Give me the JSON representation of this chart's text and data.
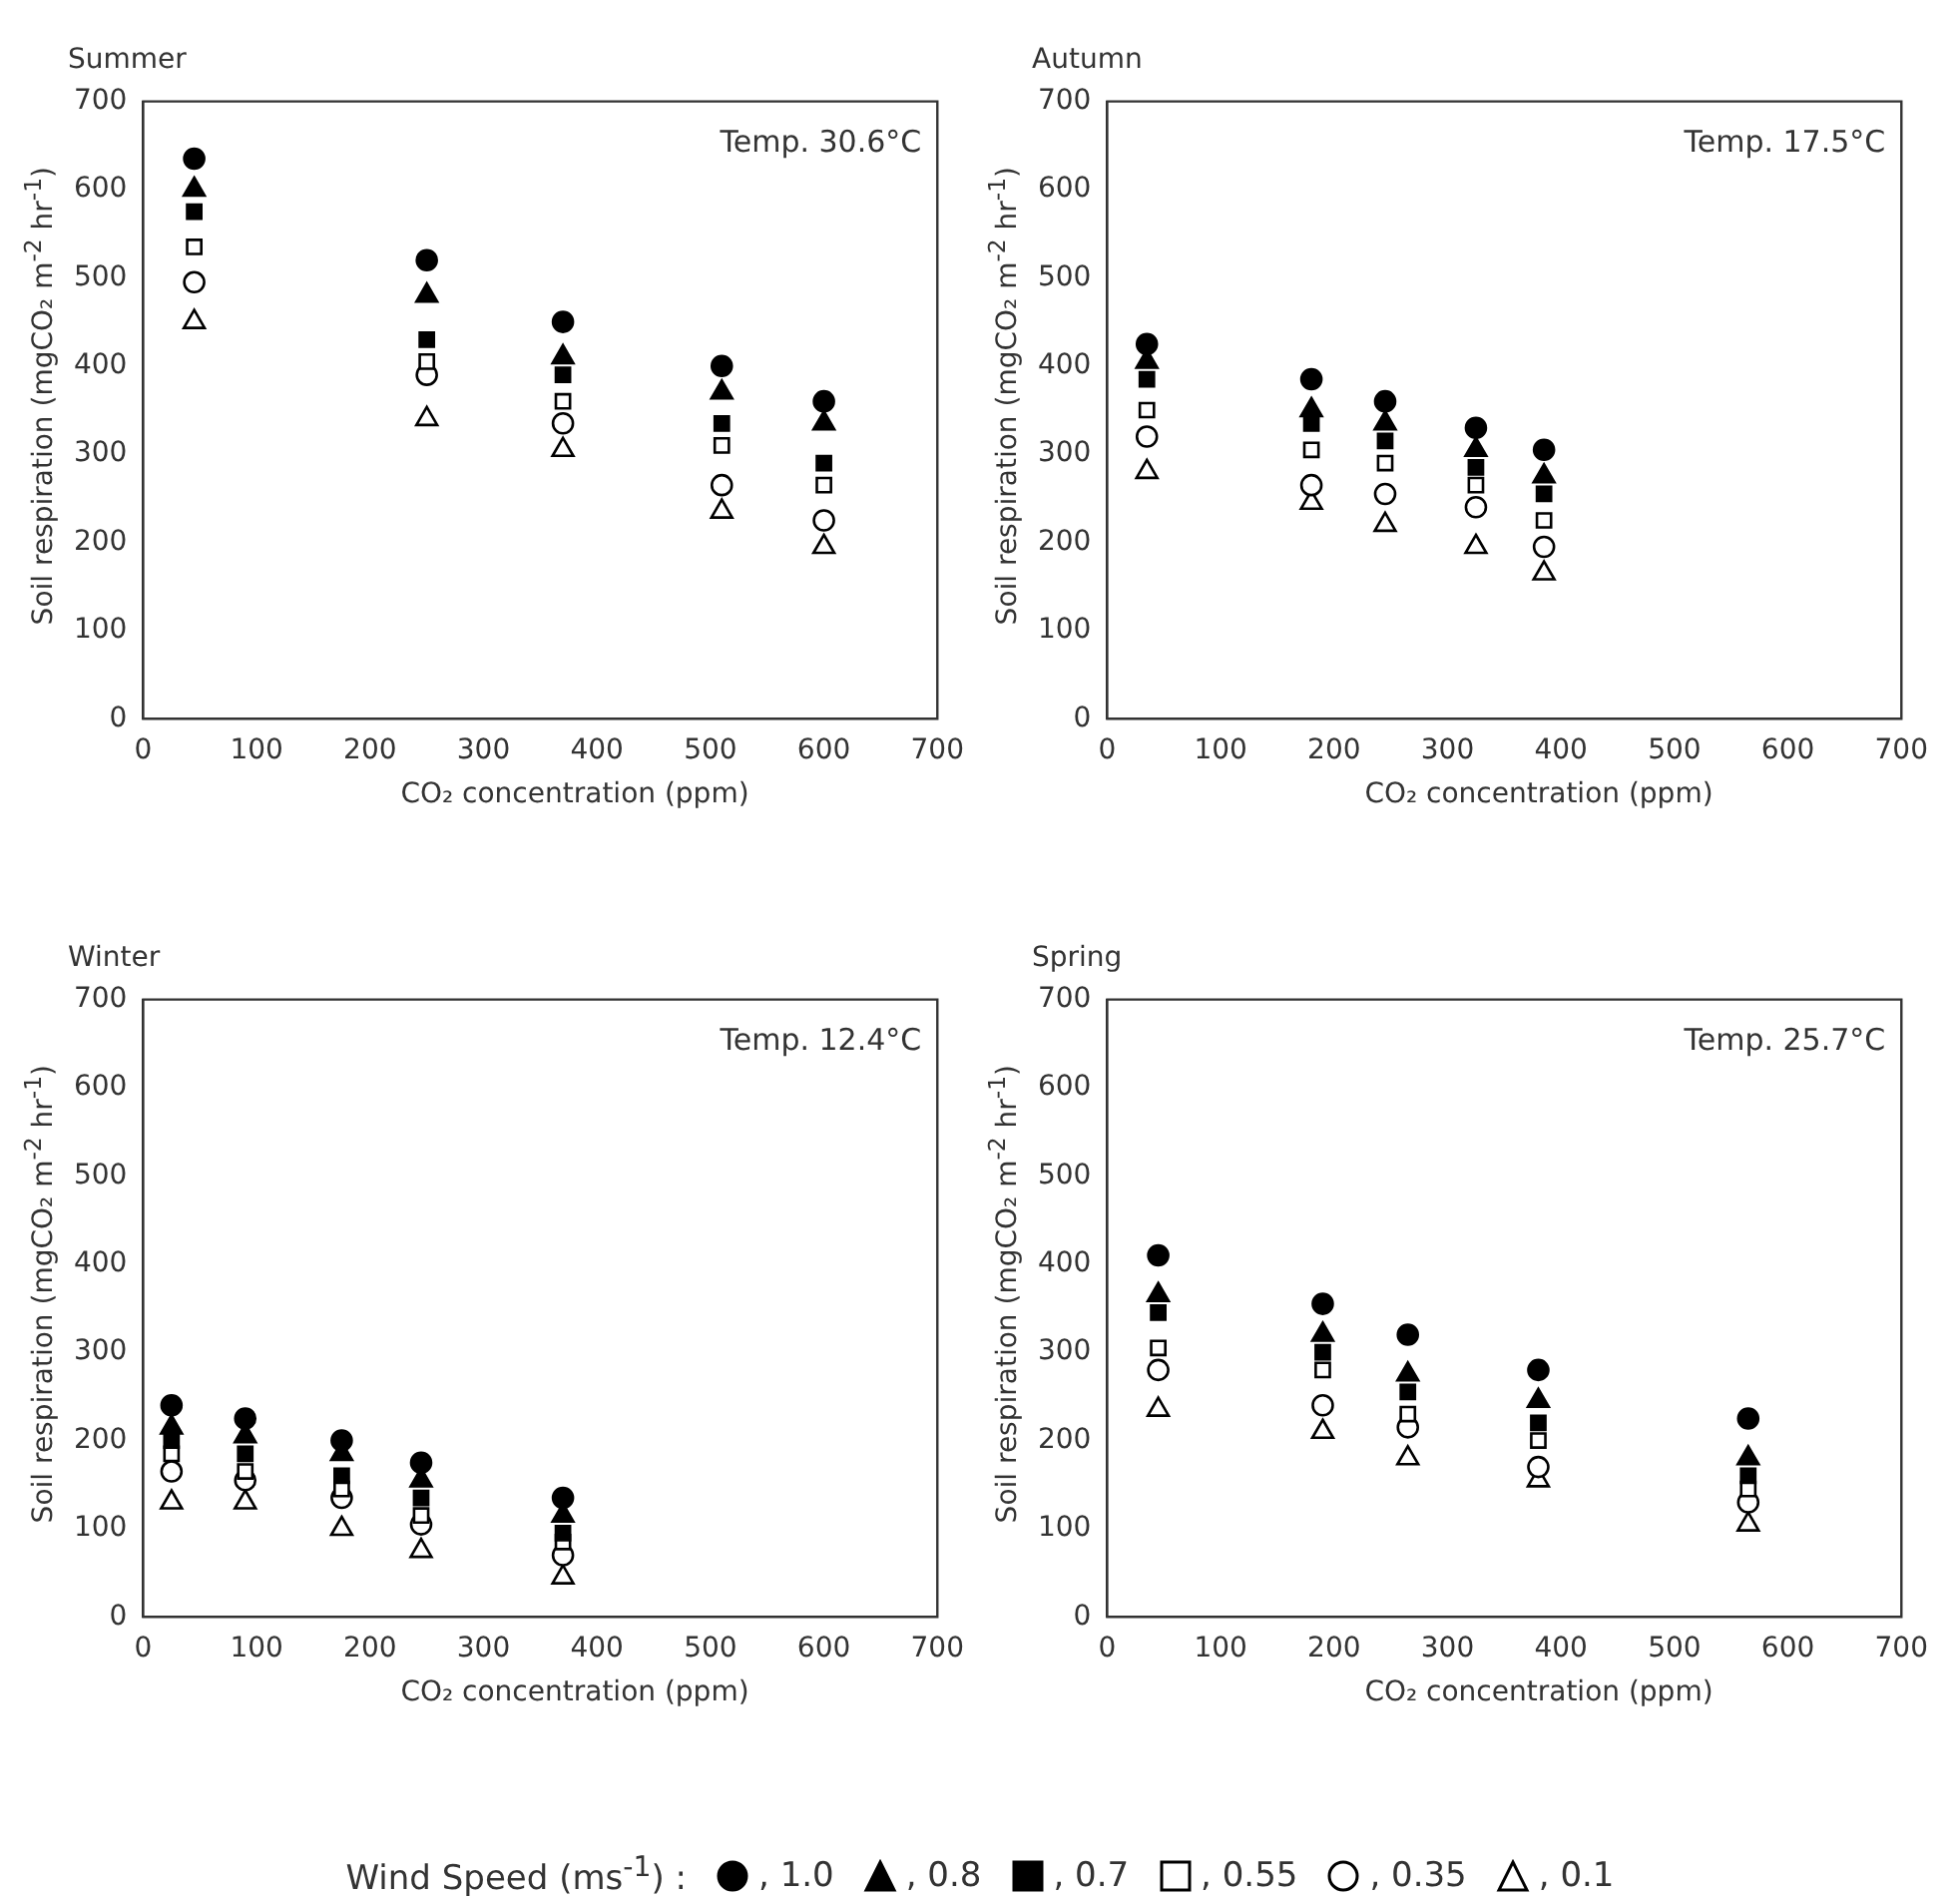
{
  "chart_data": [
    {
      "type": "scatter",
      "title": "Summer",
      "xlabel": "CO₂ concentration (ppm)",
      "ylabel": "Soil respiration (mgCO₂ m$^{-2}$ hr$^{-1}$)",
      "xlim": [
        0,
        700
      ],
      "ylim": [
        0,
        700
      ],
      "xticks": [
        0,
        100,
        200,
        300,
        400,
        500,
        600,
        700
      ],
      "yticks": [
        0,
        100,
        200,
        300,
        400,
        500,
        600,
        700
      ],
      "grid": false,
      "legend": false,
      "annotations": [
        "Temp. 30.6°C"
      ],
      "x": [
        45,
        250,
        370,
        510,
        600
      ],
      "series": [
        {
          "color": "#000000",
          "marker": "circle",
          "values": [
            635,
            520,
            450,
            400,
            360
          ]
        },
        {
          "color": "#000000",
          "marker": "triangle",
          "values": [
            600,
            480,
            410,
            370,
            335
          ]
        },
        {
          "color": "#000000",
          "marker": "square",
          "values": [
            575,
            430,
            390,
            335,
            290
          ]
        },
        {
          "color": "#000000",
          "marker": "square-open",
          "values": [
            535,
            405,
            360,
            310,
            265
          ]
        },
        {
          "color": "#000000",
          "marker": "circle-open",
          "values": [
            495,
            390,
            335,
            265,
            225
          ]
        },
        {
          "color": "#000000",
          "marker": "triangle-open",
          "values": [
            450,
            340,
            305,
            235,
            195
          ]
        }
      ]
    },
    {
      "type": "scatter",
      "title": "Autumn",
      "xlabel": "CO₂ concentration (ppm)",
      "ylabel": "Soil respiration (mgCO₂ m$^{-2}$ hr$^{-1}$)",
      "xlim": [
        0,
        700
      ],
      "ylim": [
        0,
        700
      ],
      "xticks": [
        0,
        100,
        200,
        300,
        400,
        500,
        600,
        700
      ],
      "yticks": [
        0,
        100,
        200,
        300,
        400,
        500,
        600,
        700
      ],
      "grid": false,
      "legend": false,
      "annotations": [
        "Temp. 17.5°C"
      ],
      "x": [
        35,
        180,
        245,
        325,
        385
      ],
      "series": [
        {
          "color": "#000000",
          "marker": "circle",
          "values": [
            425,
            385,
            360,
            330,
            305
          ]
        },
        {
          "color": "#000000",
          "marker": "triangle",
          "values": [
            405,
            350,
            335,
            305,
            275
          ]
        },
        {
          "color": "#000000",
          "marker": "square",
          "values": [
            385,
            335,
            315,
            285,
            255
          ]
        },
        {
          "color": "#000000",
          "marker": "square-open",
          "values": [
            350,
            305,
            290,
            265,
            225
          ]
        },
        {
          "color": "#000000",
          "marker": "circle-open",
          "values": [
            320,
            265,
            255,
            240,
            195
          ]
        },
        {
          "color": "#000000",
          "marker": "triangle-open",
          "values": [
            280,
            245,
            220,
            195,
            165
          ]
        }
      ]
    },
    {
      "type": "scatter",
      "title": "Winter",
      "xlabel": "CO₂ concentration (ppm)",
      "ylabel": "Soil respiration (mgCO₂ m$^{-2}$ hr$^{-1}$)",
      "xlim": [
        0,
        700
      ],
      "ylim": [
        0,
        700
      ],
      "xticks": [
        0,
        100,
        200,
        300,
        400,
        500,
        600,
        700
      ],
      "yticks": [
        0,
        100,
        200,
        300,
        400,
        500,
        600,
        700
      ],
      "grid": false,
      "legend": false,
      "annotations": [
        "Temp. 12.4°C"
      ],
      "x": [
        25,
        90,
        175,
        245,
        370
      ],
      "series": [
        {
          "color": "#000000",
          "marker": "circle",
          "values": [
            240,
            225,
            200,
            175,
            135
          ]
        },
        {
          "color": "#000000",
          "marker": "triangle",
          "values": [
            215,
            205,
            185,
            155,
            115
          ]
        },
        {
          "color": "#000000",
          "marker": "square",
          "values": [
            200,
            185,
            160,
            135,
            95
          ]
        },
        {
          "color": "#000000",
          "marker": "square-open",
          "values": [
            185,
            165,
            145,
            115,
            85
          ]
        },
        {
          "color": "#000000",
          "marker": "circle-open",
          "values": [
            165,
            155,
            135,
            105,
            70
          ]
        },
        {
          "color": "#000000",
          "marker": "triangle-open",
          "values": [
            130,
            130,
            100,
            75,
            45
          ]
        }
      ]
    },
    {
      "type": "scatter",
      "title": "Spring",
      "xlabel": "CO₂ concentration (ppm)",
      "ylabel": "Soil respiration (mgCO₂ m$^{-2}$ hr$^{-1}$)",
      "xlim": [
        0,
        700
      ],
      "ylim": [
        0,
        700
      ],
      "xticks": [
        0,
        100,
        200,
        300,
        400,
        500,
        600,
        700
      ],
      "yticks": [
        0,
        100,
        200,
        300,
        400,
        500,
        600,
        700
      ],
      "grid": false,
      "legend": "bottom",
      "legend_title": "Wind Speed (ms$^{-1}$) :",
      "annotations": [
        "Temp. 25.7°C"
      ],
      "x": [
        45,
        190,
        265,
        380,
        565
      ],
      "series": [
        {
          "name": ", 1.0",
          "color": "#000000",
          "marker": "circle",
          "values": [
            410,
            355,
            320,
            280,
            225
          ]
        },
        {
          "name": ", 0.8",
          "color": "#000000",
          "marker": "triangle",
          "values": [
            365,
            320,
            275,
            245,
            180
          ]
        },
        {
          "name": ", 0.7",
          "color": "#000000",
          "marker": "square",
          "values": [
            345,
            300,
            255,
            220,
            160
          ]
        },
        {
          "name": ", 0.55",
          "color": "#000000",
          "marker": "square-open",
          "values": [
            305,
            280,
            230,
            200,
            145
          ]
        },
        {
          "name": ", 0.35",
          "color": "#000000",
          "marker": "circle-open",
          "values": [
            280,
            240,
            215,
            170,
            130
          ]
        },
        {
          "name": ", 0.1",
          "color": "#000000",
          "marker": "triangle-open",
          "values": [
            235,
            210,
            180,
            155,
            105
          ]
        }
      ]
    }
  ]
}
